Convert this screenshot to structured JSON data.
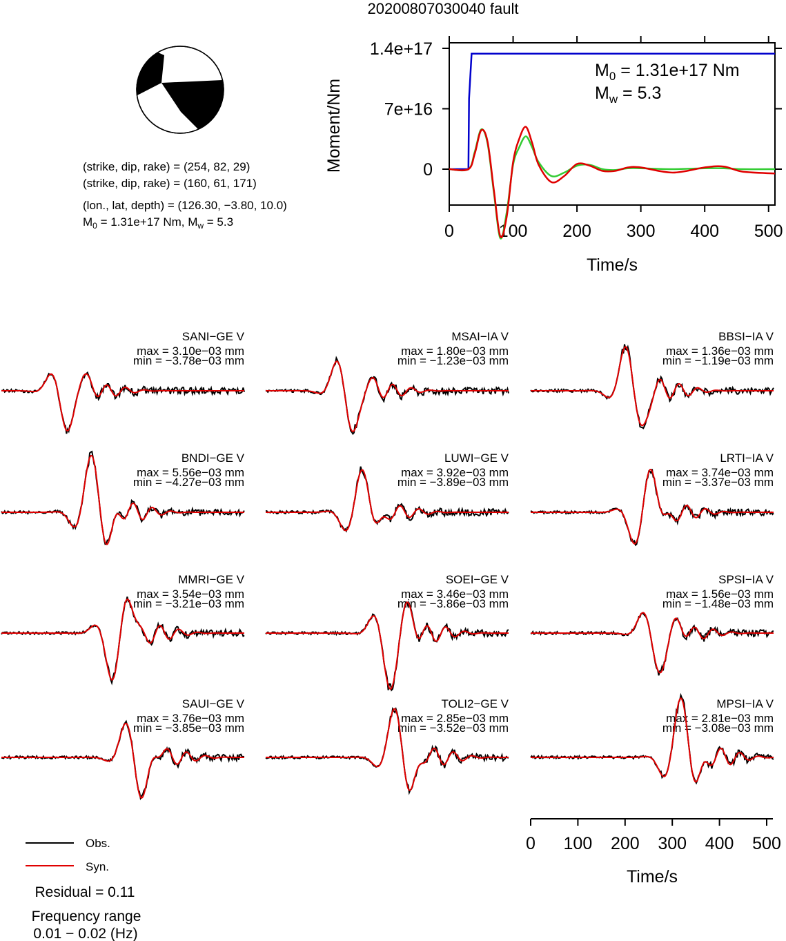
{
  "title": "20200807030040 fault",
  "focal": {
    "line1": "(strike, dip, rake) = (254, 82, 29)",
    "line2": "(strike, dip, rake) = (160, 61, 171)",
    "line3": "(lon., lat, depth) = (126.30, −3.80, 10.0)",
    "m0_label": "M",
    "m0_sub": "0",
    "m0_rest": " = 1.31e+17 Nm, M",
    "mw_sub": "w",
    "mw_rest": " = 5.3"
  },
  "moment_panel": {
    "annot_m": "M",
    "annot_m0_sub": "0",
    "annot_m0_rest": " = 1.31e+17 Nm",
    "annot_mw_sub": "w",
    "annot_mw_rest": " = 5.3",
    "ylabel": "Moment/Nm",
    "xlabel": "Time/s",
    "yticks": [
      "1.4e+17",
      "7e+16",
      "0"
    ],
    "xticks": [
      "0",
      "100",
      "200",
      "300",
      "400",
      "500"
    ]
  },
  "stations": [
    {
      "name": "SANI−GE V",
      "max": "max = 3.10e−03 mm",
      "min": "min = −3.78e−03 mm"
    },
    {
      "name": "MSAI−IA V",
      "max": "max = 1.80e−03 mm",
      "min": "min = −1.23e−03 mm"
    },
    {
      "name": "BBSI−IA V",
      "max": "max = 1.36e−03 mm",
      "min": "min = −1.19e−03 mm"
    },
    {
      "name": "BNDI−GE V",
      "max": "max = 5.56e−03 mm",
      "min": "min = −4.27e−03 mm"
    },
    {
      "name": "LUWI−GE V",
      "max": "max = 3.92e−03 mm",
      "min": "min = −3.89e−03 mm"
    },
    {
      "name": "LRTI−IA V",
      "max": "max = 3.74e−03 mm",
      "min": "min = −3.37e−03 mm"
    },
    {
      "name": "MMRI−GE V",
      "max": "max = 3.54e−03 mm",
      "min": "min = −3.21e−03 mm"
    },
    {
      "name": "SOEI−GE V",
      "max": "max = 3.46e−03 mm",
      "min": "min = −3.86e−03 mm"
    },
    {
      "name": "SPSI−IA V",
      "max": "max = 1.56e−03 mm",
      "min": "min = −1.48e−03 mm"
    },
    {
      "name": "SAUI−GE V",
      "max": "max = 3.76e−03 mm",
      "min": "min = −3.85e−03 mm"
    },
    {
      "name": "TOLI2−GE V",
      "max": "max = 2.85e−03 mm",
      "min": "min = −3.52e−03 mm"
    },
    {
      "name": "MPSI−IA V",
      "max": "max = 2.81e−03 mm",
      "min": "min = −3.08e−03 mm"
    }
  ],
  "waveform_axis": {
    "xlabel": "Time/s",
    "xticks": [
      "0",
      "100",
      "200",
      "300",
      "400",
      "500"
    ]
  },
  "legend": {
    "obs": "Obs.",
    "syn": "Syn.",
    "residual": "Residual = 0.11",
    "freq_title": "Frequency range",
    "freq_value": "0.01 − 0.02 (Hz)"
  },
  "colors": {
    "observed": "#000000",
    "synthetic": "#e00000",
    "cumulative_moment": "#0000cc",
    "moment_rate_syn": "#e00000",
    "moment_rate_obs": "#33cc33"
  },
  "chart_data": [
    {
      "type": "line",
      "title": "",
      "xlabel": "Time/s",
      "ylabel": "Moment/Nm",
      "xlim": [
        0,
        510
      ],
      "ylim": [
        -8e+16,
        1.4e+17
      ],
      "series": [
        {
          "x": [
            0,
            30,
            31,
            35,
            510
          ],
          "y": [
            0,
            0,
            8e+16,
            1.31e+17,
            1.31e+17
          ]
        },
        {
          "x": [
            0,
            30,
            40,
            50,
            60,
            70,
            80,
            90,
            100,
            110,
            120,
            130,
            140,
            160,
            180,
            200,
            220,
            240,
            260,
            280,
            300,
            350,
            400,
            430,
            460,
            510
          ],
          "y": [
            0,
            0,
            1.8e+16,
            4.5e+16,
            3.2e+16,
            -2.5e+16,
            -7.8e+16,
            -5.5e+16,
            8000000000000000.0,
            3.6e+16,
            4.9e+16,
            3e+16,
            5000000000000000.0,
            -1.5e+16,
            -8000000000000000.0,
            6000000000000000.0,
            4000000000000000.0,
            -2000000000000000.0,
            -2000000000000000.0,
            2000000000000000.0,
            2000000000000000.0,
            -4000000000000000.0,
            2000000000000000.0,
            3000000000000000.0,
            -3000000000000000.0,
            -5000000000000000.0
          ]
        },
        {
          "x": [
            0,
            30,
            40,
            50,
            60,
            70,
            80,
            90,
            100,
            110,
            120,
            130,
            140,
            160,
            180,
            200,
            220,
            240,
            260,
            280,
            300,
            350,
            400,
            430,
            460,
            510
          ],
          "y": [
            0,
            0,
            2e+16,
            4.6e+16,
            3e+16,
            -2.8e+16,
            -8e+16,
            -5e+16,
            5000000000000000.0,
            2.6e+16,
            3.8e+16,
            2.5e+16,
            8000000000000000.0,
            -8000000000000000.0,
            -4000000000000000.0,
            4000000000000000.0,
            5000000000000000.0,
            0,
            -1000000000000000.0,
            1000000000000000.0,
            1000000000000000.0,
            0,
            1000000000000000.0,
            1000000000000000.0,
            0,
            0
          ]
        }
      ]
    }
  ]
}
